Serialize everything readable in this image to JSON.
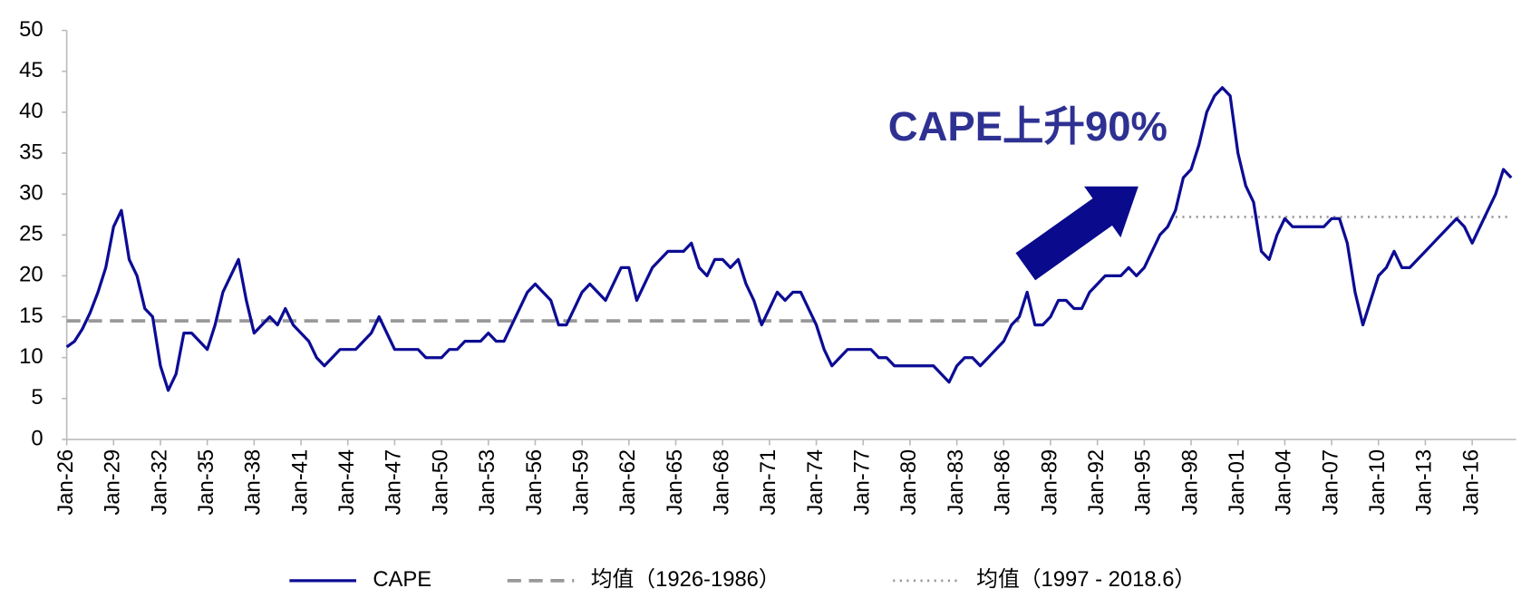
{
  "chart_data": {
    "type": "line",
    "annotation": "CAPE上升90%",
    "categories": [
      "Jan-26",
      null,
      null,
      null,
      null,
      null,
      "Jan-29",
      null,
      null,
      null,
      null,
      null,
      "Jan-32",
      null,
      null,
      null,
      null,
      null,
      "Jan-35",
      null,
      null,
      null,
      null,
      null,
      "Jan-38",
      null,
      null,
      null,
      null,
      null,
      "Jan-41",
      null,
      null,
      null,
      null,
      null,
      "Jan-44",
      null,
      null,
      null,
      null,
      null,
      "Jan-47",
      null,
      null,
      null,
      null,
      null,
      "Jan-50",
      null,
      null,
      null,
      null,
      null,
      "Jan-53",
      null,
      null,
      null,
      null,
      null,
      "Jan-56",
      null,
      null,
      null,
      null,
      null,
      "Jan-59",
      null,
      null,
      null,
      null,
      null,
      "Jan-62",
      null,
      null,
      null,
      null,
      null,
      "Jan-65",
      null,
      null,
      null,
      null,
      null,
      "Jan-68",
      null,
      null,
      null,
      null,
      null,
      "Jan-71",
      null,
      null,
      null,
      null,
      null,
      "Jan-74",
      null,
      null,
      null,
      null,
      null,
      "Jan-77",
      null,
      null,
      null,
      null,
      null,
      "Jan-80",
      null,
      null,
      null,
      null,
      null,
      "Jan-83",
      null,
      null,
      null,
      null,
      null,
      "Jan-86",
      null,
      null,
      null,
      null,
      null,
      "Jan-89",
      null,
      null,
      null,
      null,
      null,
      "Jan-92",
      null,
      null,
      null,
      null,
      null,
      "Jan-95",
      null,
      null,
      null,
      null,
      null,
      "Jan-98",
      null,
      null,
      null,
      null,
      null,
      "Jan-01",
      null,
      null,
      null,
      null,
      null,
      "Jan-04",
      null,
      null,
      null,
      null,
      null,
      "Jan-07",
      null,
      null,
      null,
      null,
      null,
      "Jan-10",
      null,
      null,
      null,
      null,
      null,
      "Jan-13",
      null,
      null,
      null,
      null,
      null,
      "Jan-16",
      null,
      null,
      null,
      null,
      null
    ],
    "series": [
      {
        "name": "CAPE",
        "color": "#0c0c94",
        "dash": "solid",
        "values": [
          11.3,
          12.0,
          13.5,
          15.5,
          18,
          21,
          26,
          28,
          22,
          20,
          16,
          15,
          9,
          6,
          8,
          13,
          13,
          12,
          11,
          14,
          18,
          20,
          22,
          17,
          13,
          14,
          15,
          14,
          16,
          14,
          13,
          12,
          10,
          9,
          10,
          11,
          11,
          11,
          12,
          13,
          15,
          13,
          11,
          11,
          11,
          11,
          10,
          10,
          10,
          11,
          11,
          12,
          12,
          12,
          13,
          12,
          12,
          14,
          16,
          18,
          19,
          18,
          17,
          14,
          14,
          16,
          18,
          19,
          18,
          17,
          19,
          21,
          21,
          17,
          19,
          21,
          22,
          23,
          23,
          23,
          24,
          21,
          20,
          22,
          22,
          21,
          22,
          19,
          17,
          14,
          16,
          18,
          17,
          18,
          18,
          16,
          14,
          11,
          9,
          10,
          11,
          11,
          11,
          11,
          10,
          10,
          9,
          9,
          9,
          9,
          9,
          9,
          8,
          7,
          9,
          10,
          10,
          9,
          10,
          11,
          12,
          14,
          15,
          18,
          14,
          14,
          15,
          17,
          17,
          16,
          16,
          18,
          19,
          20,
          20,
          20,
          21,
          20,
          21,
          23,
          25,
          26,
          28,
          32,
          33,
          36,
          40,
          42,
          43,
          42,
          35,
          31,
          29,
          23,
          22,
          25,
          27,
          26,
          26,
          26,
          26,
          26,
          27,
          27,
          24,
          18,
          14,
          17,
          20,
          21,
          23,
          21,
          21,
          22,
          23,
          24,
          25,
          26,
          27,
          26,
          24,
          26,
          28,
          30,
          33,
          32
        ]
      },
      {
        "name": "均值（1926-1986）",
        "color": "#999999",
        "dash": "dashed",
        "values": [
          14.5,
          14.5,
          14.5,
          14.5,
          14.5,
          14.5,
          14.5,
          14.5,
          14.5,
          14.5,
          14.5,
          14.5,
          14.5,
          14.5,
          14.5,
          14.5,
          14.5,
          14.5,
          14.5,
          14.5,
          14.5,
          14.5,
          14.5,
          14.5,
          14.5,
          14.5,
          14.5,
          14.5,
          14.5,
          14.5,
          14.5,
          14.5,
          14.5,
          14.5,
          14.5,
          14.5,
          14.5,
          14.5,
          14.5,
          14.5,
          14.5,
          14.5,
          14.5,
          14.5,
          14.5,
          14.5,
          14.5,
          14.5,
          14.5,
          14.5,
          14.5,
          14.5,
          14.5,
          14.5,
          14.5,
          14.5,
          14.5,
          14.5,
          14.5,
          14.5,
          14.5,
          14.5,
          14.5,
          14.5,
          14.5,
          14.5,
          14.5,
          14.5,
          14.5,
          14.5,
          14.5,
          14.5,
          14.5,
          14.5,
          14.5,
          14.5,
          14.5,
          14.5,
          14.5,
          14.5,
          14.5,
          14.5,
          14.5,
          14.5,
          14.5,
          14.5,
          14.5,
          14.5,
          14.5,
          14.5,
          14.5,
          14.5,
          14.5,
          14.5,
          14.5,
          14.5,
          14.5,
          14.5,
          14.5,
          14.5,
          14.5,
          14.5,
          14.5,
          14.5,
          14.5,
          14.5,
          14.5,
          14.5,
          14.5,
          14.5,
          14.5,
          14.5,
          14.5,
          14.5,
          14.5,
          14.5,
          14.5,
          14.5,
          14.5,
          14.5,
          14.5,
          14.5,
          14.5,
          null,
          null,
          null,
          null,
          null,
          null,
          null,
          null,
          null,
          null,
          null,
          null,
          null,
          null,
          null,
          null,
          null,
          null,
          null,
          null,
          null,
          null,
          null,
          null,
          null,
          null,
          null,
          null,
          null,
          null,
          null,
          null,
          null,
          null,
          null,
          null,
          null,
          null,
          null,
          null,
          null,
          null,
          null,
          null,
          null,
          null,
          null,
          null,
          null,
          null,
          null,
          null,
          null,
          null,
          null,
          null,
          null,
          null,
          null,
          null,
          null,
          null,
          null
        ]
      },
      {
        "name": "均值（1997 - 2018.6）",
        "color": "#999999",
        "dash": "dotted",
        "values": [
          null,
          null,
          null,
          null,
          null,
          null,
          null,
          null,
          null,
          null,
          null,
          null,
          null,
          null,
          null,
          null,
          null,
          null,
          null,
          null,
          null,
          null,
          null,
          null,
          null,
          null,
          null,
          null,
          null,
          null,
          null,
          null,
          null,
          null,
          null,
          null,
          null,
          null,
          null,
          null,
          null,
          null,
          null,
          null,
          null,
          null,
          null,
          null,
          null,
          null,
          null,
          null,
          null,
          null,
          null,
          null,
          null,
          null,
          null,
          null,
          null,
          null,
          null,
          null,
          null,
          null,
          null,
          null,
          null,
          null,
          null,
          null,
          null,
          null,
          null,
          null,
          null,
          null,
          null,
          null,
          null,
          null,
          null,
          null,
          null,
          null,
          null,
          null,
          null,
          null,
          null,
          null,
          null,
          null,
          null,
          null,
          null,
          null,
          null,
          null,
          null,
          null,
          null,
          null,
          null,
          null,
          null,
          null,
          null,
          null,
          null,
          null,
          null,
          null,
          null,
          null,
          null,
          null,
          null,
          null,
          null,
          null,
          null,
          null,
          null,
          null,
          null,
          null,
          null,
          null,
          null,
          null,
          null,
          null,
          null,
          null,
          null,
          null,
          null,
          null,
          null,
          null,
          27.2,
          27.2,
          27.2,
          27.2,
          27.2,
          27.2,
          27.2,
          27.2,
          27.2,
          27.2,
          27.2,
          27.2,
          27.2,
          27.2,
          27.2,
          27.2,
          27.2,
          27.2,
          27.2,
          27.2,
          27.2,
          27.2,
          27.2,
          27.2,
          27.2,
          27.2,
          27.2,
          27.2,
          27.2,
          27.2,
          27.2,
          27.2,
          27.2,
          27.2,
          27.2,
          27.2,
          27.2,
          27.2,
          27.2,
          27.2,
          27.2,
          27.2,
          27.2,
          27.2
        ]
      }
    ],
    "ylim": [
      0,
      50
    ],
    "yticks": [
      0,
      5,
      10,
      15,
      20,
      25,
      30,
      35,
      40,
      45,
      50
    ],
    "grid": false,
    "legend": "bottom"
  }
}
